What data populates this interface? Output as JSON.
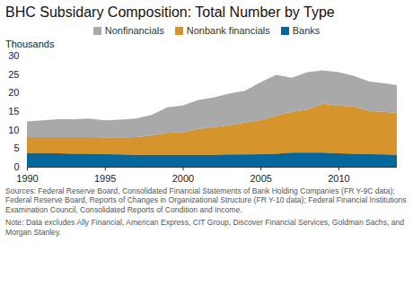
{
  "chart_data": {
    "type": "area",
    "stacked": true,
    "title": "BHC Subsidary Composition: Total Number by Type",
    "y_label": "Thousands",
    "notes": [
      "Sources: Federal Reserve Board, Consolidated Financial Statements of Bank Holding Companies (FR Y-9C data); Federal Reserve Board, Reports of Changes in Organizational Structure (FR Y-10 data); Federal Financial Institutions Examination Council, Consolidated Reports of Condition and Income.",
      "Note: Data excludes Ally Financial, American Express, CIT Group, Discover Financial Services, Goldman Sachs, and Morgan Stanley."
    ],
    "legend": "top",
    "grid": false,
    "x": [
      1990,
      1991,
      1992,
      1993,
      1994,
      1995,
      1996,
      1997,
      1998,
      1999,
      2000,
      2001,
      2002,
      2003,
      2004,
      2005,
      2006,
      2007,
      2008,
      2009,
      2010,
      2011,
      2012,
      2013,
      2013.75
    ],
    "xlim": [
      1990,
      2013.75
    ],
    "xticks": [
      1990,
      1995,
      2000,
      2005,
      2010
    ],
    "ylim": [
      0,
      30
    ],
    "yticks": [
      0,
      5,
      10,
      15,
      20,
      25,
      30
    ],
    "series": [
      {
        "name": "Nonfinancials",
        "color": "#a9a9a9",
        "values": [
          4.2,
          4.5,
          4.8,
          4.8,
          5.0,
          4.6,
          4.8,
          5.0,
          5.6,
          6.8,
          7.2,
          7.8,
          8.0,
          8.6,
          8.6,
          10.2,
          11.0,
          9.2,
          10.1,
          9.0,
          9.0,
          8.2,
          8.0,
          7.7,
          7.5
        ]
      },
      {
        "name": "Nonbank financials",
        "color": "#d6952c",
        "values": [
          4.3,
          4.3,
          4.4,
          4.5,
          4.5,
          4.5,
          4.6,
          4.8,
          5.2,
          6.0,
          6.1,
          7.0,
          7.5,
          7.9,
          8.6,
          9.2,
          10.3,
          11.0,
          11.6,
          13.2,
          12.9,
          12.8,
          11.6,
          11.5,
          11.3
        ]
      },
      {
        "name": "Banks",
        "color": "#06679c",
        "values": [
          3.7,
          3.7,
          3.6,
          3.5,
          3.5,
          3.4,
          3.3,
          3.2,
          3.2,
          3.2,
          3.2,
          3.2,
          3.2,
          3.3,
          3.3,
          3.4,
          3.5,
          3.8,
          3.8,
          3.8,
          3.6,
          3.5,
          3.4,
          3.3,
          3.2
        ]
      }
    ]
  }
}
